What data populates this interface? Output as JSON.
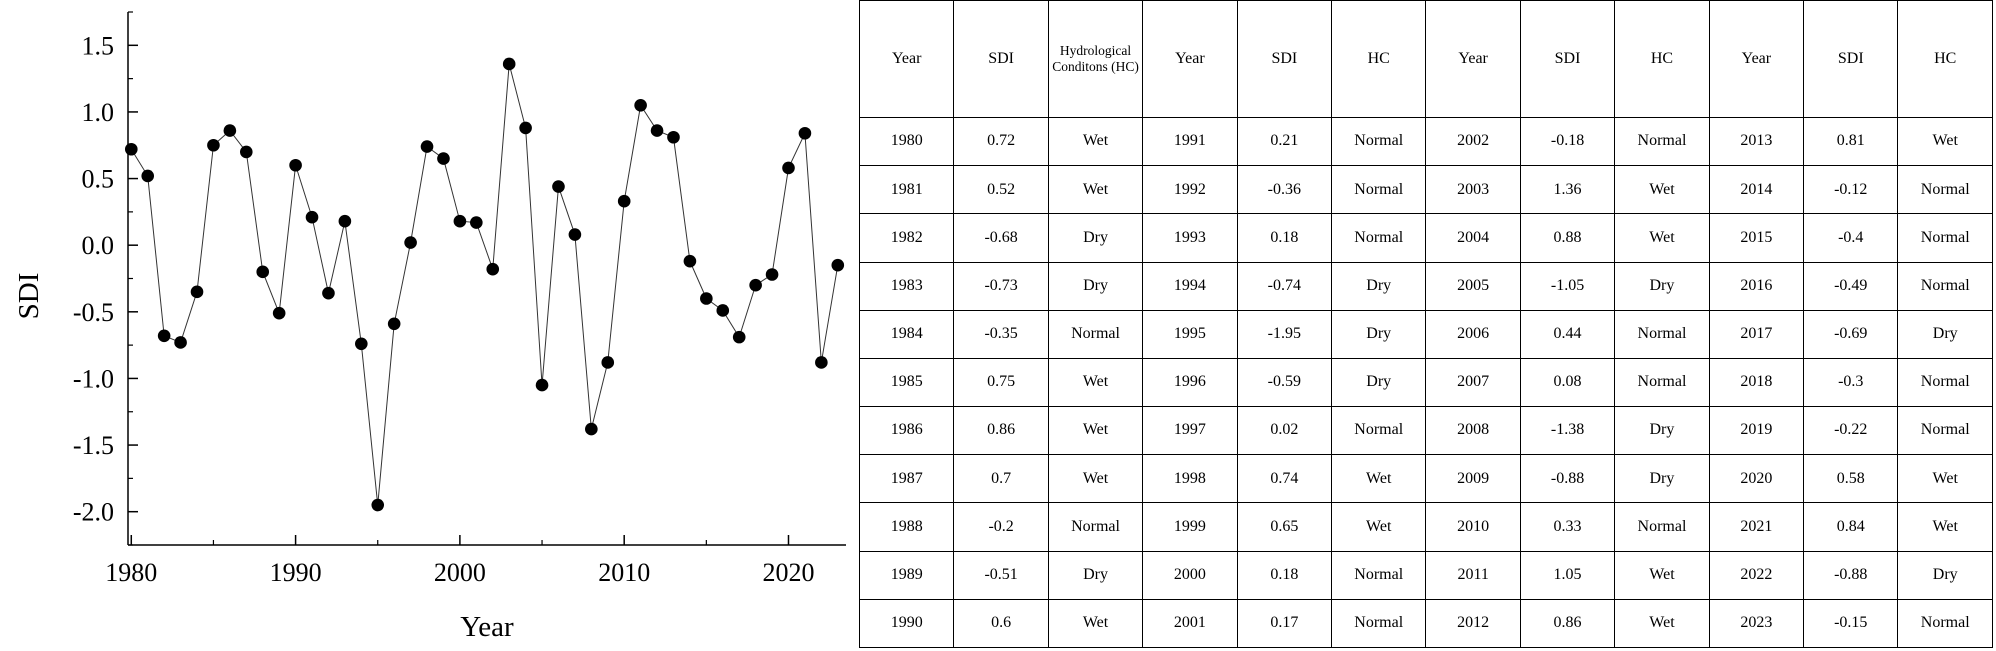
{
  "chart_data": {
    "type": "line",
    "xlabel": "Year",
    "ylabel": "SDI",
    "xlim": [
      1979.8,
      2023.5
    ],
    "ylim": [
      -2.25,
      1.75
    ],
    "x_ticks": [
      1980,
      1990,
      2000,
      2010,
      2020
    ],
    "y_ticks": [
      1.5,
      1.0,
      0.5,
      0.0,
      -0.5,
      -1.0,
      -1.5,
      -2.0
    ],
    "y_tick_labels": [
      "1.5",
      "1.0",
      "0.5",
      "0.0",
      "-0.5",
      "-1.0",
      "-1.5",
      "-2.0"
    ],
    "grid": false,
    "legend": "none",
    "marker_color": "#000000",
    "line_color": "#333333",
    "series": [
      {
        "x": [
          1980,
          1981,
          1982,
          1983,
          1984,
          1985,
          1986,
          1987,
          1988,
          1989,
          1990,
          1991,
          1992,
          1993,
          1994,
          1995,
          1996,
          1997,
          1998,
          1999,
          2000,
          2001,
          2002,
          2003,
          2004,
          2005,
          2006,
          2007,
          2008,
          2009,
          2010,
          2011,
          2012,
          2013,
          2014,
          2015,
          2016,
          2017,
          2018,
          2019,
          2020,
          2021,
          2022,
          2023
        ],
        "values": [
          0.72,
          0.52,
          -0.68,
          -0.73,
          -0.35,
          0.75,
          0.86,
          0.7,
          -0.2,
          -0.51,
          0.6,
          0.21,
          -0.36,
          0.18,
          -0.74,
          -1.95,
          -0.59,
          0.02,
          0.74,
          0.65,
          0.18,
          0.17,
          -0.18,
          1.36,
          0.88,
          -1.05,
          0.44,
          0.08,
          -1.38,
          -0.88,
          0.33,
          1.05,
          0.86,
          0.81,
          -0.12,
          -0.4,
          -0.49,
          -0.69,
          -0.3,
          -0.22,
          0.58,
          0.84,
          -0.88,
          -0.15
        ]
      }
    ]
  },
  "table": {
    "headers": [
      "Year",
      "SDI",
      "Hydrological Conditons (HC)",
      "Year",
      "SDI",
      "HC",
      "Year",
      "SDI",
      "HC",
      "Year",
      "SDI",
      "HC"
    ],
    "rows": [
      [
        "1980",
        "0.72",
        "Wet",
        "1991",
        "0.21",
        "Normal",
        "2002",
        "-0.18",
        "Normal",
        "2013",
        "0.81",
        "Wet"
      ],
      [
        "1981",
        "0.52",
        "Wet",
        "1992",
        "-0.36",
        "Normal",
        "2003",
        "1.36",
        "Wet",
        "2014",
        "-0.12",
        "Normal"
      ],
      [
        "1982",
        "-0.68",
        "Dry",
        "1993",
        "0.18",
        "Normal",
        "2004",
        "0.88",
        "Wet",
        "2015",
        "-0.4",
        "Normal"
      ],
      [
        "1983",
        "-0.73",
        "Dry",
        "1994",
        "-0.74",
        "Dry",
        "2005",
        "-1.05",
        "Dry",
        "2016",
        "-0.49",
        "Normal"
      ],
      [
        "1984",
        "-0.35",
        "Normal",
        "1995",
        "-1.95",
        "Dry",
        "2006",
        "0.44",
        "Normal",
        "2017",
        "-0.69",
        "Dry"
      ],
      [
        "1985",
        "0.75",
        "Wet",
        "1996",
        "-0.59",
        "Dry",
        "2007",
        "0.08",
        "Normal",
        "2018",
        "-0.3",
        "Normal"
      ],
      [
        "1986",
        "0.86",
        "Wet",
        "1997",
        "0.02",
        "Normal",
        "2008",
        "-1.38",
        "Dry",
        "2019",
        "-0.22",
        "Normal"
      ],
      [
        "1987",
        "0.7",
        "Wet",
        "1998",
        "0.74",
        "Wet",
        "2009",
        "-0.88",
        "Dry",
        "2020",
        "0.58",
        "Wet"
      ],
      [
        "1988",
        "-0.2",
        "Normal",
        "1999",
        "0.65",
        "Wet",
        "2010",
        "0.33",
        "Normal",
        "2021",
        "0.84",
        "Wet"
      ],
      [
        "1989",
        "-0.51",
        "Dry",
        "2000",
        "0.18",
        "Normal",
        "2011",
        "1.05",
        "Wet",
        "2022",
        "-0.88",
        "Dry"
      ],
      [
        "1990",
        "0.6",
        "Wet",
        "2001",
        "0.17",
        "Normal",
        "2012",
        "0.86",
        "Wet",
        "2023",
        "-0.15",
        "Normal"
      ]
    ]
  }
}
